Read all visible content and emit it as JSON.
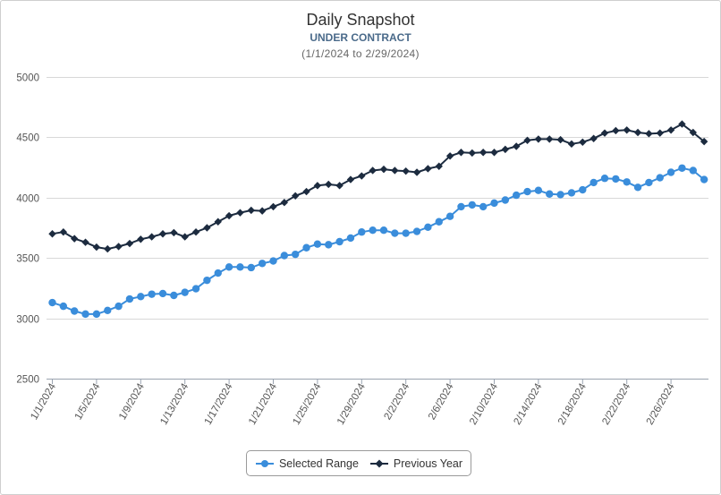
{
  "chart_data": {
    "type": "line",
    "title": "Daily Snapshot",
    "subtitle": "UNDER CONTRACT",
    "date_range": "(1/1/2024 to 2/29/2024)",
    "xlabel": "",
    "ylabel": "",
    "ylim": [
      2500,
      5000
    ],
    "yticks": [
      2500,
      3000,
      3500,
      4000,
      4500,
      5000
    ],
    "grid": true,
    "legend_position": "bottom-center",
    "x_tick_labels": [
      "1/1/2024",
      "1/5/2024",
      "1/9/2024",
      "1/13/2024",
      "1/17/2024",
      "1/21/2024",
      "1/25/2024",
      "1/29/2024",
      "2/2/2024",
      "2/6/2024",
      "2/10/2024",
      "2/14/2024",
      "2/18/2024",
      "2/22/2024",
      "2/26/2024"
    ],
    "x_tick_every": 4,
    "series": [
      {
        "name": "Selected Range",
        "color": "#3a8ddb",
        "marker": "circle",
        "values": [
          3130,
          3100,
          3060,
          3035,
          3035,
          3065,
          3100,
          3160,
          3180,
          3200,
          3205,
          3190,
          3215,
          3245,
          3315,
          3375,
          3425,
          3425,
          3420,
          3455,
          3475,
          3520,
          3530,
          3585,
          3615,
          3610,
          3635,
          3665,
          3715,
          3730,
          3730,
          3705,
          3705,
          3720,
          3755,
          3800,
          3845,
          3925,
          3940,
          3925,
          3955,
          3980,
          4020,
          4050,
          4060,
          4030,
          4025,
          4040,
          4065,
          4125,
          4160,
          4155,
          4130,
          4085,
          4125,
          4165,
          4210,
          4245,
          4225,
          4150
        ]
      },
      {
        "name": "Previous Year",
        "color": "#1c2b3f",
        "marker": "diamond",
        "values": [
          3700,
          3715,
          3660,
          3630,
          3590,
          3575,
          3595,
          3620,
          3655,
          3675,
          3700,
          3710,
          3675,
          3715,
          3750,
          3800,
          3850,
          3875,
          3895,
          3890,
          3925,
          3960,
          4015,
          4050,
          4100,
          4110,
          4100,
          4150,
          4180,
          4225,
          4235,
          4225,
          4220,
          4210,
          4240,
          4260,
          4345,
          4375,
          4370,
          4375,
          4375,
          4400,
          4425,
          4475,
          4485,
          4485,
          4480,
          4445,
          4460,
          4490,
          4535,
          4555,
          4560,
          4540,
          4530,
          4535,
          4560,
          4610,
          4540,
          4465
        ]
      }
    ]
  }
}
